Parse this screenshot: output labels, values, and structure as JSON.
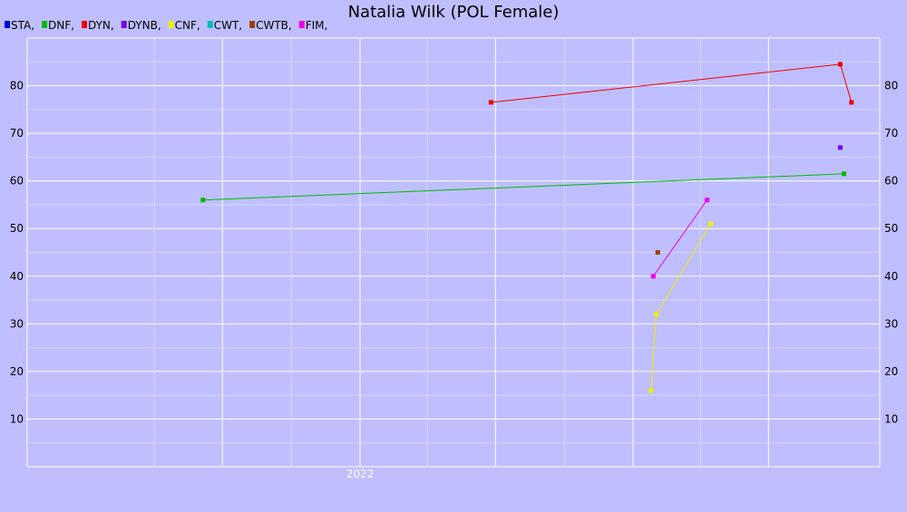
{
  "chart_data": {
    "type": "line",
    "title": "Natalia Wilk (POL Female)",
    "xlabel": "",
    "ylabel": "",
    "x_tick_labels": [
      "2022"
    ],
    "y_ticks": [
      10,
      20,
      30,
      40,
      50,
      60,
      70,
      80
    ],
    "ylim": [
      0,
      90
    ],
    "grid": true,
    "legend_placement": "top-left",
    "legend": [
      {
        "label": "STA,",
        "color": "#0000dd"
      },
      {
        "label": "DNF,",
        "color": "#00bb00"
      },
      {
        "label": "DYN,",
        "color": "#ee0000"
      },
      {
        "label": "DYNB,",
        "color": "#7700ee"
      },
      {
        "label": "CNF,",
        "color": "#eeee00"
      },
      {
        "label": "CWT,",
        "color": "#00bbbb"
      },
      {
        "label": "CWTB,",
        "color": "#994400"
      },
      {
        "label": "FIM,",
        "color": "#ee00ee"
      }
    ],
    "series": [
      {
        "name": "DNF,",
        "color": "#00bb00",
        "points": [
          {
            "x": "2021-06-05",
            "y": 56
          },
          {
            "x": "2023-10-10",
            "y": 61.5
          }
        ]
      },
      {
        "name": "DYN,",
        "color": "#ee0000",
        "points": [
          {
            "x": "2022-06-25",
            "y": 76.5
          },
          {
            "x": "2023-10-05",
            "y": 84.5
          },
          {
            "x": "2023-10-20",
            "y": 76.5
          }
        ]
      },
      {
        "name": "DYNB,",
        "color": "#7700ee",
        "points": [
          {
            "x": "2023-10-05",
            "y": 67
          }
        ]
      },
      {
        "name": "CNF,",
        "color": "#eeee00",
        "points": [
          {
            "x": "2023-01-25",
            "y": 16
          },
          {
            "x": "2023-02-01",
            "y": 32
          },
          {
            "x": "2023-04-15",
            "y": 51
          }
        ]
      },
      {
        "name": "CWTB,",
        "color": "#994400",
        "points": [
          {
            "x": "2023-02-03",
            "y": 45
          }
        ]
      },
      {
        "name": "FIM,",
        "color": "#ee00ee",
        "points": [
          {
            "x": "2023-01-28",
            "y": 40
          },
          {
            "x": "2023-04-10",
            "y": 56
          }
        ]
      }
    ]
  }
}
